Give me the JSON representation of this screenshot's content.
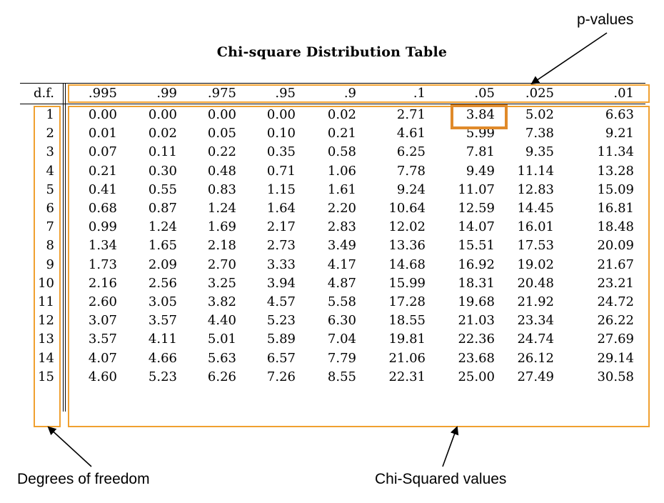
{
  "chart_data": {
    "type": "table",
    "title": "Chi-square Distribution Table",
    "row_header": "d.f.",
    "columns": [
      ".995",
      ".99",
      ".975",
      ".95",
      ".9",
      ".1",
      ".05",
      ".025",
      ".01"
    ],
    "rows": [
      {
        "df": "1",
        "values": [
          "0.00",
          "0.00",
          "0.00",
          "0.00",
          "0.02",
          "2.71",
          "3.84",
          "5.02",
          "6.63"
        ]
      },
      {
        "df": "2",
        "values": [
          "0.01",
          "0.02",
          "0.05",
          "0.10",
          "0.21",
          "4.61",
          "5.99",
          "7.38",
          "9.21"
        ]
      },
      {
        "df": "3",
        "values": [
          "0.07",
          "0.11",
          "0.22",
          "0.35",
          "0.58",
          "6.25",
          "7.81",
          "9.35",
          "11.34"
        ]
      },
      {
        "df": "4",
        "values": [
          "0.21",
          "0.30",
          "0.48",
          "0.71",
          "1.06",
          "7.78",
          "9.49",
          "11.14",
          "13.28"
        ]
      },
      {
        "df": "5",
        "values": [
          "0.41",
          "0.55",
          "0.83",
          "1.15",
          "1.61",
          "9.24",
          "11.07",
          "12.83",
          "15.09"
        ]
      },
      {
        "df": "6",
        "values": [
          "0.68",
          "0.87",
          "1.24",
          "1.64",
          "2.20",
          "10.64",
          "12.59",
          "14.45",
          "16.81"
        ]
      },
      {
        "df": "7",
        "values": [
          "0.99",
          "1.24",
          "1.69",
          "2.17",
          "2.83",
          "12.02",
          "14.07",
          "16.01",
          "18.48"
        ]
      },
      {
        "df": "8",
        "values": [
          "1.34",
          "1.65",
          "2.18",
          "2.73",
          "3.49",
          "13.36",
          "15.51",
          "17.53",
          "20.09"
        ]
      },
      {
        "df": "9",
        "values": [
          "1.73",
          "2.09",
          "2.70",
          "3.33",
          "4.17",
          "14.68",
          "16.92",
          "19.02",
          "21.67"
        ]
      },
      {
        "df": "10",
        "values": [
          "2.16",
          "2.56",
          "3.25",
          "3.94",
          "4.87",
          "15.99",
          "18.31",
          "20.48",
          "23.21"
        ]
      },
      {
        "df": "11",
        "values": [
          "2.60",
          "3.05",
          "3.82",
          "4.57",
          "5.58",
          "17.28",
          "19.68",
          "21.92",
          "24.72"
        ]
      },
      {
        "df": "12",
        "values": [
          "3.07",
          "3.57",
          "4.40",
          "5.23",
          "6.30",
          "18.55",
          "21.03",
          "23.34",
          "26.22"
        ]
      },
      {
        "df": "13",
        "values": [
          "3.57",
          "4.11",
          "5.01",
          "5.89",
          "7.04",
          "19.81",
          "22.36",
          "24.74",
          "27.69"
        ]
      },
      {
        "df": "14",
        "values": [
          "4.07",
          "4.66",
          "5.63",
          "6.57",
          "7.79",
          "21.06",
          "23.68",
          "26.12",
          "29.14"
        ]
      },
      {
        "df": "15",
        "values": [
          "4.60",
          "5.23",
          "6.26",
          "7.26",
          "8.55",
          "22.31",
          "25.00",
          "27.49",
          "30.58"
        ]
      }
    ],
    "highlighted_cell": {
      "df": "1",
      "column": ".05",
      "value": "3.84"
    }
  },
  "annotations": {
    "p_values": "p-values",
    "degrees_of_freedom": "Degrees of freedom",
    "chi_squared_values": "Chi-Squared values"
  },
  "colors": {
    "annotation_box": "#f0a030",
    "highlight_box": "#e08a2a",
    "text": "#000000"
  }
}
